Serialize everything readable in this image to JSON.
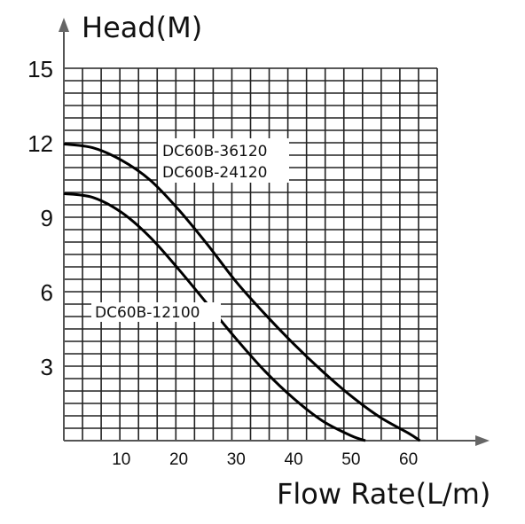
{
  "chart_data": {
    "type": "line",
    "ylabel": "Head(M)",
    "xlabel": "Flow Rate(L/m)",
    "xlim": [
      0,
      65
    ],
    "ylim": [
      0,
      15
    ],
    "x_ticks": [
      10,
      20,
      30,
      40,
      50,
      60
    ],
    "y_ticks": [
      3,
      6,
      9,
      12,
      15
    ],
    "grid": true,
    "series": [
      {
        "name": "DC60B-36120",
        "name2": "DC60B-24120",
        "x": [
          0,
          5,
          10,
          15,
          20,
          25,
          30,
          35,
          40,
          45,
          50,
          55,
          60,
          62
        ],
        "y": [
          11.95,
          11.8,
          11.3,
          10.5,
          9.3,
          7.9,
          6.4,
          5.1,
          3.9,
          2.8,
          1.8,
          0.95,
          0.3,
          0
        ]
      },
      {
        "name": "DC60B-12100",
        "x": [
          0,
          5,
          10,
          15,
          20,
          25,
          30,
          35,
          40,
          45,
          50,
          52.5
        ],
        "y": [
          9.95,
          9.8,
          9.2,
          8.2,
          6.9,
          5.5,
          4.1,
          2.8,
          1.7,
          0.8,
          0.2,
          0
        ]
      }
    ]
  }
}
